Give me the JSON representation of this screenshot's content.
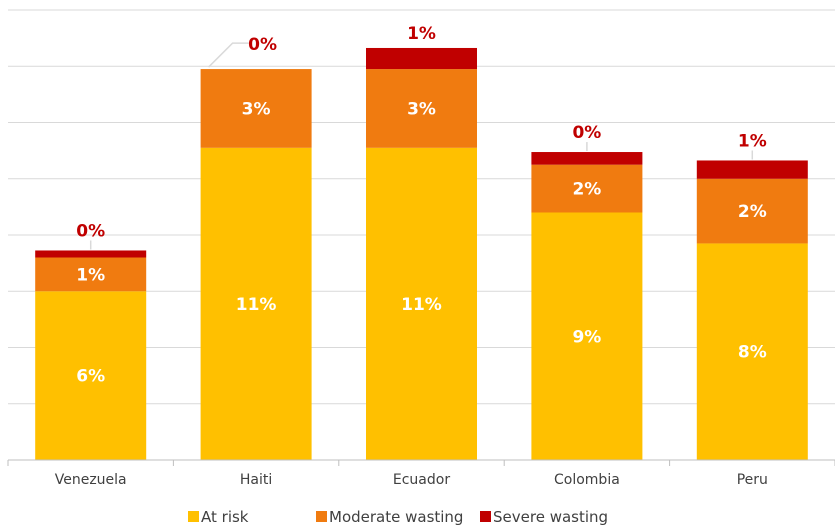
{
  "chart_data": {
    "type": "bar",
    "stacked": true,
    "categories": [
      "Venezuela",
      "Haiti",
      "Ecuador",
      "Colombia",
      "Peru"
    ],
    "series": [
      {
        "name": "At risk",
        "color": "#ffc000",
        "values": [
          6.0,
          11.1,
          11.1,
          8.8,
          7.7
        ],
        "labels": [
          "6%",
          "11%",
          "11%",
          "9%",
          "8%"
        ]
      },
      {
        "name": "Moderate wasting",
        "color": "#f07b10",
        "values": [
          1.2,
          2.8,
          2.8,
          1.7,
          2.3
        ],
        "labels": [
          "1%",
          "3%",
          "3%",
          "2%",
          "2%"
        ]
      },
      {
        "name": "Severe wasting",
        "color": "#c00000",
        "values": [
          0.25,
          0.0,
          0.75,
          0.45,
          0.65
        ],
        "labels": [
          "0%",
          "0%",
          "1%",
          "0%",
          "1%"
        ]
      }
    ],
    "ylim": [
      0,
      16
    ],
    "grid": true,
    "legend": "bottom"
  }
}
